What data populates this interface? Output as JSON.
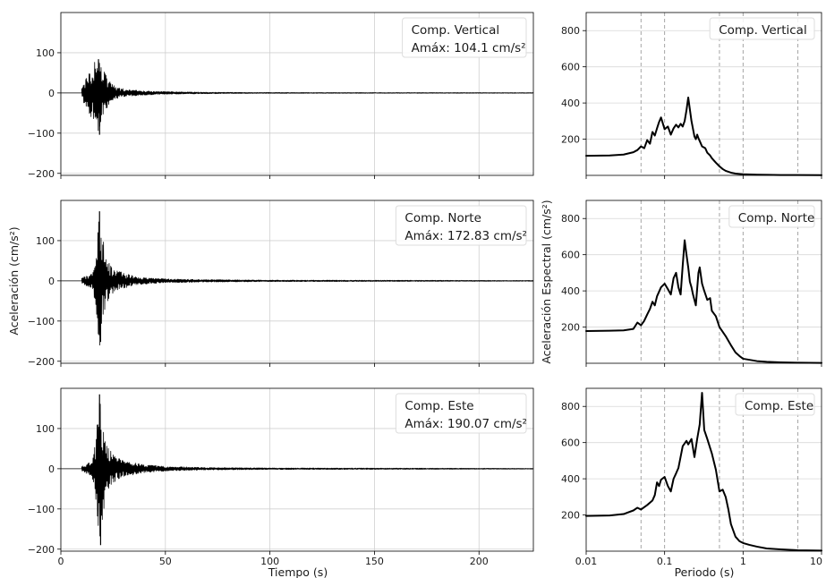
{
  "figure": {
    "left_ylabel": "Aceleración (cm/s²)",
    "left_xlabel": "Tiempo (s)",
    "right_ylabel": "Aceleración Espectral (cm/s²)",
    "right_xlabel": "Periodo (s)"
  },
  "chart_data": [
    {
      "type": "line",
      "chart": "acceleration-time-history",
      "legend": "Comp. Vertical",
      "peak_label": "Amáx: 104.1 cm/s²",
      "legend_position": "top-right",
      "xlim": [
        0,
        226
      ],
      "ylim": [
        -205,
        200
      ],
      "xticks": [
        0,
        50,
        100,
        150,
        200
      ],
      "yticks": [
        -200,
        -100,
        0,
        100
      ],
      "grid": true,
      "color": "#000000",
      "series": [
        {
          "onset": 10,
          "peak_time": 18,
          "peak_pos": 84,
          "peak_neg": -104,
          "envelope": [
            [
              10,
              15
            ],
            [
              13,
              45
            ],
            [
              16,
              84
            ],
            [
              18,
              95
            ],
            [
              20,
              60
            ],
            [
              23,
              30
            ],
            [
              27,
              14
            ],
            [
              32,
              8
            ],
            [
              45,
              4
            ],
            [
              60,
              2.5
            ],
            [
              80,
              1.5
            ],
            [
              120,
              1
            ],
            [
              226,
              0.8
            ]
          ]
        }
      ]
    },
    {
      "type": "line",
      "chart": "acceleration-time-history",
      "legend": "Comp. Norte",
      "peak_label": "Amáx: 172.83 cm/s²",
      "legend_position": "top-right",
      "xlim": [
        0,
        226
      ],
      "ylim": [
        -205,
        200
      ],
      "xticks": [
        0,
        50,
        100,
        150,
        200
      ],
      "yticks": [
        -200,
        -100,
        0,
        100
      ],
      "grid": true,
      "color": "#000000",
      "series": [
        {
          "onset": 10,
          "peak_time": 18.5,
          "peak_pos": 173,
          "peak_neg": -152,
          "envelope": [
            [
              10,
              8
            ],
            [
              15,
              20
            ],
            [
              17,
              80
            ],
            [
              18.5,
              172
            ],
            [
              20,
              110
            ],
            [
              22,
              55
            ],
            [
              25,
              30
            ],
            [
              30,
              20
            ],
            [
              36,
              10
            ],
            [
              50,
              5
            ],
            [
              70,
              3
            ],
            [
              100,
              2
            ],
            [
              226,
              1
            ]
          ]
        }
      ]
    },
    {
      "type": "line",
      "chart": "acceleration-time-history",
      "legend": "Comp. Este",
      "peak_label": "Amáx: 190.07 cm/s²",
      "legend_position": "top-right",
      "xlim": [
        0,
        226
      ],
      "ylim": [
        -205,
        200
      ],
      "xticks": [
        0,
        50,
        100,
        150,
        200
      ],
      "yticks": [
        -200,
        -100,
        0,
        100
      ],
      "grid": true,
      "color": "#000000",
      "series": [
        {
          "onset": 10,
          "peak_time": 18.5,
          "peak_pos": 185,
          "peak_neg": -190,
          "envelope": [
            [
              10,
              6
            ],
            [
              15,
              20
            ],
            [
              17,
              90
            ],
            [
              18.5,
              185
            ],
            [
              20,
              120
            ],
            [
              22,
              60
            ],
            [
              25,
              35
            ],
            [
              30,
              20
            ],
            [
              40,
              10
            ],
            [
              50,
              6
            ],
            [
              70,
              3
            ],
            [
              100,
              2
            ],
            [
              226,
              1
            ]
          ]
        }
      ]
    },
    {
      "type": "line",
      "chart": "response-spectrum",
      "legend": "Comp. Vertical",
      "legend_position": "top-right",
      "xscale": "log",
      "xlim": [
        0.01,
        10
      ],
      "ylim": [
        0,
        900
      ],
      "yticks": [
        200,
        400,
        600,
        800
      ],
      "vlines": [
        0.05,
        0.1,
        0.5,
        1,
        5
      ],
      "color": "#000000",
      "series": [
        {
          "x": [
            0.01,
            0.02,
            0.03,
            0.04,
            0.045,
            0.05,
            0.055,
            0.06,
            0.065,
            0.07,
            0.075,
            0.08,
            0.085,
            0.09,
            0.1,
            0.11,
            0.12,
            0.13,
            0.14,
            0.15,
            0.16,
            0.17,
            0.18,
            0.19,
            0.2,
            0.22,
            0.24,
            0.25,
            0.26,
            0.27,
            0.28,
            0.3,
            0.33,
            0.35,
            0.38,
            0.4,
            0.45,
            0.5,
            0.55,
            0.6,
            0.7,
            0.8,
            1,
            1.5,
            2,
            3,
            5,
            10
          ],
          "y": [
            108,
            110,
            115,
            128,
            140,
            160,
            150,
            195,
            175,
            240,
            220,
            260,
            295,
            320,
            255,
            270,
            225,
            260,
            280,
            265,
            285,
            270,
            300,
            360,
            430,
            300,
            215,
            200,
            225,
            205,
            190,
            160,
            150,
            125,
            110,
            95,
            70,
            50,
            35,
            25,
            15,
            10,
            6,
            4,
            3,
            2,
            2,
            1
          ]
        }
      ]
    },
    {
      "type": "line",
      "chart": "response-spectrum",
      "legend": "Comp. Norte",
      "legend_position": "top-right",
      "xscale": "log",
      "xlim": [
        0.01,
        10
      ],
      "ylim": [
        0,
        900
      ],
      "yticks": [
        200,
        400,
        600,
        800
      ],
      "vlines": [
        0.05,
        0.1,
        0.5,
        1,
        5
      ],
      "color": "#000000",
      "series": [
        {
          "x": [
            0.01,
            0.02,
            0.03,
            0.04,
            0.045,
            0.05,
            0.055,
            0.06,
            0.065,
            0.07,
            0.075,
            0.08,
            0.09,
            0.1,
            0.11,
            0.12,
            0.13,
            0.14,
            0.15,
            0.16,
            0.17,
            0.18,
            0.19,
            0.2,
            0.21,
            0.22,
            0.23,
            0.25,
            0.27,
            0.28,
            0.3,
            0.32,
            0.35,
            0.38,
            0.4,
            0.45,
            0.5,
            0.6,
            0.7,
            0.8,
            0.9,
            1,
            1.5,
            2,
            3,
            5,
            10
          ],
          "y": [
            178,
            180,
            182,
            190,
            225,
            210,
            235,
            270,
            300,
            340,
            320,
            370,
            420,
            440,
            410,
            380,
            470,
            500,
            420,
            380,
            540,
            680,
            600,
            530,
            450,
            420,
            380,
            320,
            500,
            530,
            440,
            400,
            350,
            360,
            290,
            260,
            200,
            150,
            100,
            60,
            40,
            25,
            12,
            8,
            5,
            3,
            2
          ]
        }
      ]
    },
    {
      "type": "line",
      "chart": "response-spectrum",
      "legend": "Comp. Este",
      "legend_position": "top-right",
      "xscale": "log",
      "xlim": [
        0.01,
        10
      ],
      "ylim": [
        0,
        900
      ],
      "yticks": [
        200,
        400,
        600,
        800
      ],
      "vlines": [
        0.05,
        0.1,
        0.5,
        1,
        5
      ],
      "color": "#000000",
      "series": [
        {
          "x": [
            0.01,
            0.02,
            0.03,
            0.04,
            0.045,
            0.05,
            0.06,
            0.07,
            0.075,
            0.08,
            0.085,
            0.09,
            0.1,
            0.11,
            0.12,
            0.13,
            0.14,
            0.15,
            0.17,
            0.19,
            0.2,
            0.22,
            0.24,
            0.26,
            0.28,
            0.3,
            0.32,
            0.35,
            0.4,
            0.45,
            0.5,
            0.55,
            0.6,
            0.65,
            0.7,
            0.8,
            0.9,
            1,
            1.2,
            1.5,
            2,
            3,
            5,
            10
          ],
          "y": [
            195,
            197,
            205,
            225,
            240,
            230,
            255,
            280,
            310,
            380,
            360,
            395,
            410,
            360,
            330,
            400,
            430,
            460,
            580,
            610,
            590,
            620,
            520,
            620,
            700,
            875,
            670,
            620,
            540,
            450,
            330,
            340,
            300,
            230,
            150,
            80,
            55,
            45,
            35,
            25,
            15,
            10,
            5,
            3
          ]
        }
      ]
    }
  ]
}
